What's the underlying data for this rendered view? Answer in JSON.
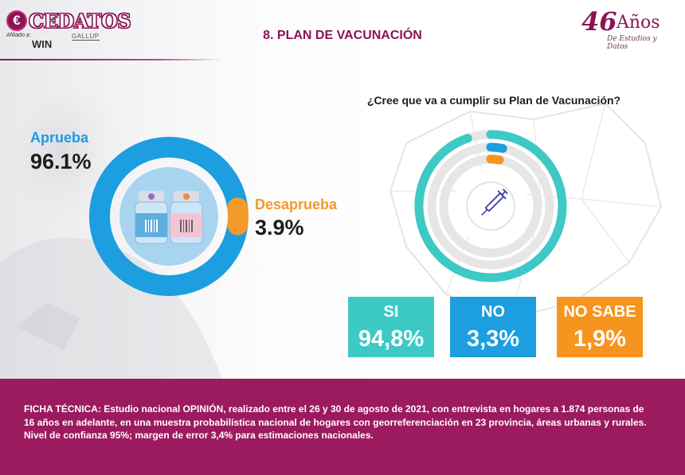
{
  "header": {
    "brand": "CEDATOS",
    "affiliate_label": "Afiliado a:",
    "partner_gallup": "GALLUP",
    "partner_win": "WIN",
    "anniversary_number": "46",
    "anniversary_word": "Años",
    "anniversary_sub": "De Estudios y Datos"
  },
  "title": "8. PLAN DE VACUNACIÓN",
  "chart_data": [
    {
      "type": "pie",
      "variant": "donut",
      "labels": [
        "Aprueba",
        "Desaprueba"
      ],
      "values": [
        96.1,
        3.9
      ],
      "value_labels": [
        "96.1%",
        "3.9%"
      ],
      "colors": [
        "#1c9ee0",
        "#f39a2a"
      ],
      "center_icon": "vaccine-vials-icon"
    },
    {
      "type": "bar",
      "variant": "radial",
      "title": "¿Cree que va a cumplir su Plan de Vacunación?",
      "categories": [
        "SI",
        "NO",
        "NO SABE"
      ],
      "values": [
        94.8,
        3.3,
        1.9
      ],
      "value_labels": [
        "94,8%",
        "3,3%",
        "1,9%"
      ],
      "colors": [
        "#3dc9c6",
        "#1c9ee0",
        "#f7941d"
      ],
      "track_color": "#e6e6e6",
      "center_icon": "syringe-icon"
    }
  ],
  "footer": {
    "ficha_line1": "FICHA TÉCNICA: Estudio nacional OPINIÓN, realizado entre el 26 y 30  de agosto de 2021, con entrevista en hogares a 1.874 personas de",
    "ficha_line2": "16 años en adelante, en una muestra probabilística nacional de hogares con georreferenciación en 23 provincia, áreas urbanas y rurales.",
    "ficha_line3": "Nivel de confianza 95%; margen de error 3,4% para estimaciones nacionales."
  }
}
